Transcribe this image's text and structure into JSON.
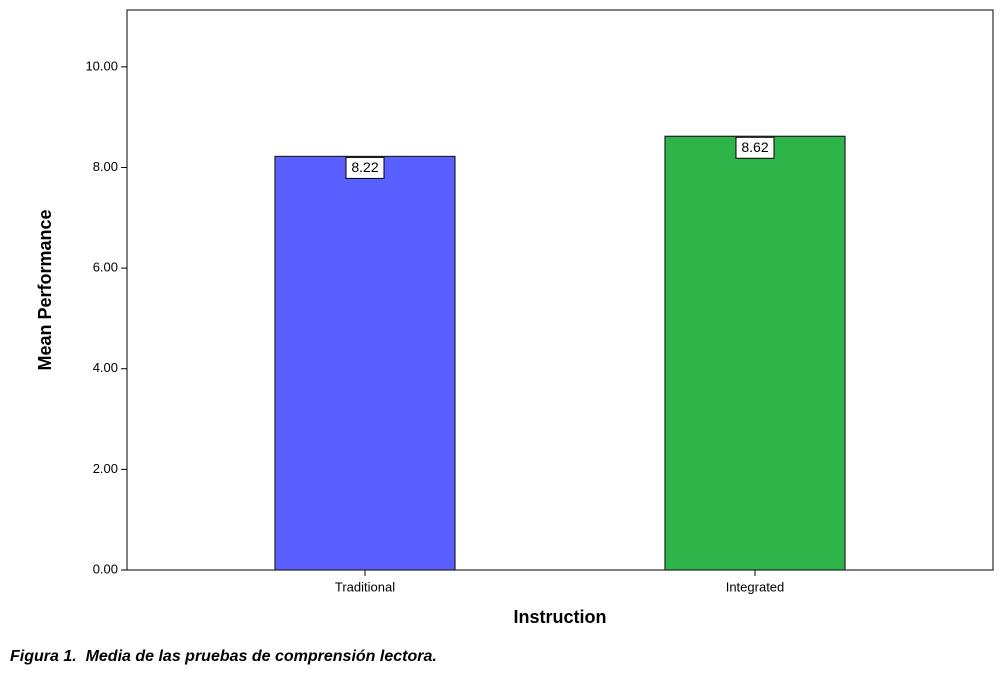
{
  "chart_data": {
    "type": "bar",
    "categories": [
      "Traditional",
      "Integrated"
    ],
    "values": [
      8.22,
      8.62
    ],
    "colors": [
      "#5a5fff",
      "#2db54a"
    ],
    "xlabel": "Instruction",
    "ylabel": "Mean Performance",
    "ylim": [
      0,
      11.13
    ],
    "yticks": [
      {
        "value": 0,
        "label": "0.00"
      },
      {
        "value": 2,
        "label": "2.00"
      },
      {
        "value": 4,
        "label": "4.00"
      },
      {
        "value": 6,
        "label": "6.00"
      },
      {
        "value": 8,
        "label": "8.00"
      },
      {
        "value": 10,
        "label": "10.00"
      }
    ],
    "grid": false
  },
  "caption": "Figura 1.  Media de las pruebas de comprensión lectora."
}
